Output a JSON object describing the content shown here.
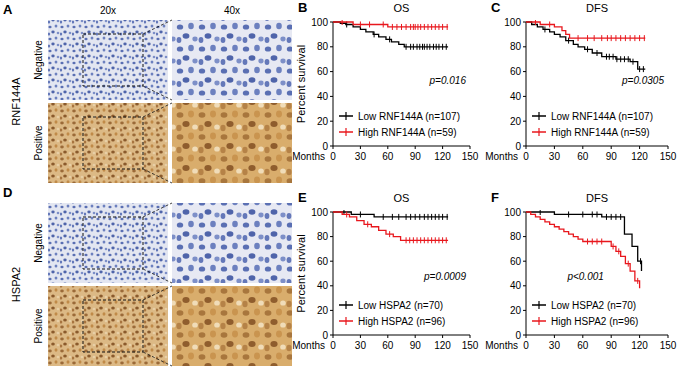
{
  "images": [
    {
      "label": "A",
      "marker": "RNF144A",
      "columns": [
        "20x",
        "40x"
      ],
      "rows": [
        "Negative",
        "Positive"
      ]
    },
    {
      "label": "D",
      "marker": "HSPA2",
      "rows": [
        "Negative",
        "Positive"
      ]
    }
  ],
  "chart_data": [
    {
      "type": "step",
      "label": "B",
      "title": "OS",
      "y_label": "Percent survival",
      "x_label": "Months",
      "annotation": "p=0.016",
      "xlim": [
        0,
        150
      ],
      "xticks": [
        0,
        30,
        60,
        90,
        120,
        150
      ],
      "ylim": [
        0,
        100
      ],
      "yticks": [
        0,
        20,
        40,
        60,
        80,
        100
      ],
      "grid": false,
      "legend": "bottom-left",
      "series": [
        {
          "name": "Low RNF144A (n=107)",
          "color": "#000000",
          "x": [
            0,
            8,
            14,
            22,
            30,
            36,
            44,
            50,
            58,
            64,
            72,
            78,
            126
          ],
          "values": [
            100,
            99,
            98,
            96,
            94,
            92,
            90,
            88,
            86,
            84,
            82,
            80,
            80
          ],
          "censored": [
            15,
            45,
            62,
            80,
            85,
            88,
            92,
            95,
            98,
            100,
            103,
            106,
            110,
            113,
            116,
            120,
            124
          ]
        },
        {
          "name": "High RNF144A (n=59)",
          "color": "#e8171d",
          "x": [
            0,
            22,
            60,
            126
          ],
          "values": [
            100,
            98,
            96,
            96
          ],
          "censored": [
            10,
            30,
            40,
            55,
            65,
            70,
            75,
            80,
            85,
            88,
            90,
            93,
            96,
            100,
            104,
            108,
            112,
            116,
            120,
            125
          ]
        }
      ]
    },
    {
      "type": "step",
      "label": "C",
      "title": "DFS",
      "x_label": "Months",
      "annotation": "p=0.0305",
      "xlim": [
        0,
        150
      ],
      "xticks": [
        0,
        30,
        60,
        90,
        120,
        150
      ],
      "ylim": [
        0,
        100
      ],
      "yticks": [
        0,
        20,
        40,
        60,
        80,
        100
      ],
      "grid": false,
      "legend": "bottom-left",
      "series": [
        {
          "name": "Low RNF144A (n=107)",
          "color": "#000000",
          "x": [
            0,
            6,
            12,
            18,
            25,
            30,
            36,
            42,
            50,
            55,
            62,
            70,
            80,
            95,
            110,
            118,
            126
          ],
          "values": [
            100,
            98,
            96,
            94,
            92,
            90,
            88,
            85,
            82,
            80,
            78,
            75,
            72,
            70,
            68,
            62,
            62
          ],
          "censored": [
            20,
            45,
            65,
            75,
            85,
            88,
            92,
            96,
            100,
            104,
            108,
            113,
            120,
            124
          ]
        },
        {
          "name": "High RNF144A (n=59)",
          "color": "#e8171d",
          "x": [
            0,
            15,
            30,
            38,
            42,
            46,
            126
          ],
          "values": [
            100,
            98,
            96,
            93,
            90,
            87,
            87
          ],
          "censored": [
            10,
            25,
            55,
            65,
            72,
            80,
            86,
            90,
            95,
            100,
            105,
            110,
            115,
            120,
            125
          ]
        }
      ]
    },
    {
      "type": "step",
      "label": "E",
      "title": "OS",
      "y_label": "Percent survival",
      "x_label": "Months",
      "annotation": "p=0.0009",
      "xlim": [
        0,
        150
      ],
      "xticks": [
        0,
        30,
        60,
        90,
        120,
        150
      ],
      "ylim": [
        0,
        100
      ],
      "yticks": [
        0,
        20,
        40,
        60,
        80,
        100
      ],
      "grid": false,
      "legend": "bottom-left",
      "series": [
        {
          "name": "Low HSPA2 (n=70)",
          "color": "#000000",
          "x": [
            0,
            20,
            45,
            126
          ],
          "values": [
            100,
            98,
            96,
            96
          ],
          "censored": [
            12,
            30,
            55,
            65,
            72,
            80,
            85,
            90,
            95,
            100,
            104,
            108,
            112,
            116,
            120,
            125
          ]
        },
        {
          "name": "High HSPA2 (n=96)",
          "color": "#e8171d",
          "x": [
            0,
            10,
            18,
            26,
            34,
            42,
            50,
            58,
            66,
            74,
            126
          ],
          "values": [
            100,
            98,
            96,
            93,
            90,
            88,
            85,
            82,
            80,
            77,
            77
          ],
          "censored": [
            15,
            38,
            62,
            80,
            84,
            88,
            92,
            96,
            100,
            104,
            108,
            112,
            116,
            120,
            124
          ]
        }
      ]
    },
    {
      "type": "step",
      "label": "F",
      "title": "DFS",
      "x_label": "Months",
      "annotation": "p<0.001",
      "xlim": [
        0,
        150
      ],
      "xticks": [
        0,
        30,
        60,
        90,
        120,
        150
      ],
      "ylim": [
        0,
        100
      ],
      "yticks": [
        0,
        20,
        40,
        60,
        80,
        100
      ],
      "grid": false,
      "legend": "bottom-left",
      "series": [
        {
          "name": "Low HSPA2 (n=70)",
          "color": "#000000",
          "x": [
            0,
            30,
            80,
            104,
            112,
            118,
            122
          ],
          "values": [
            100,
            98,
            96,
            82,
            72,
            60,
            52
          ],
          "censored": [
            15,
            45,
            60,
            70,
            75,
            85,
            90,
            95,
            100,
            121
          ]
        },
        {
          "name": "High HSPA2 (n=96)",
          "color": "#e8171d",
          "x": [
            0,
            5,
            10,
            15,
            20,
            25,
            30,
            35,
            40,
            45,
            50,
            55,
            60,
            85,
            90,
            95,
            100,
            105,
            110,
            115,
            120
          ],
          "values": [
            100,
            98,
            96,
            94,
            92,
            90,
            88,
            86,
            84,
            82,
            80,
            78,
            76,
            76,
            72,
            68,
            64,
            58,
            52,
            44,
            38
          ],
          "censored": [
            65,
            70,
            75,
            80,
            92,
            98,
            108,
            118
          ]
        }
      ]
    }
  ]
}
